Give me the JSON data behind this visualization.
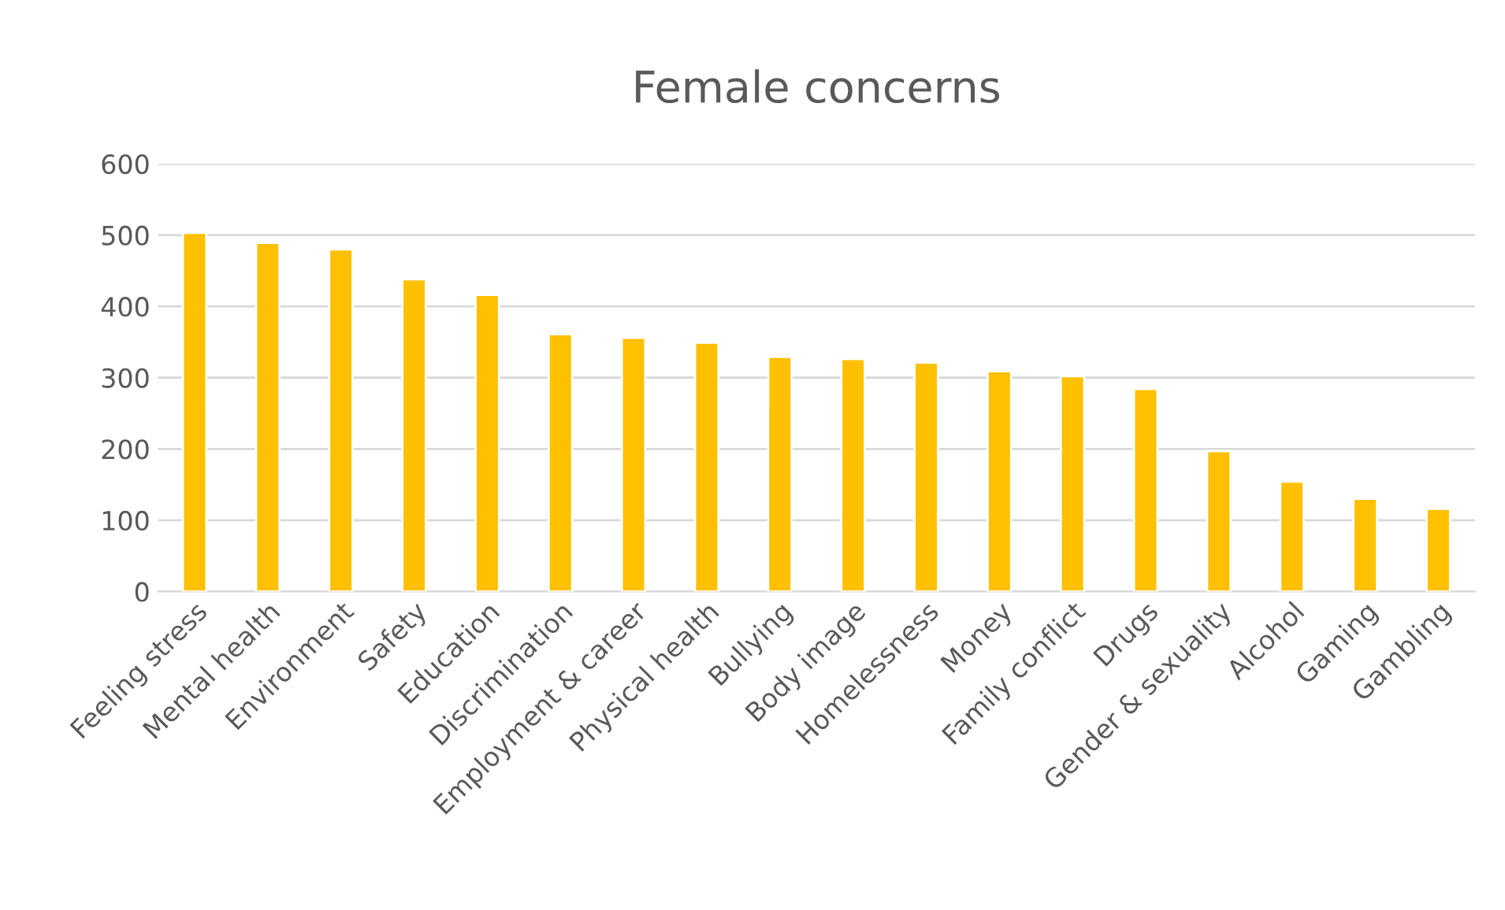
{
  "chart_data": {
    "type": "bar",
    "title": "Female concerns",
    "categories": [
      "Feeling stress",
      "Mental health",
      "Environment",
      "Safety",
      "Education",
      "Discrimination",
      "Employment & career",
      "Physical health",
      "Bullying",
      "Body image",
      "Homelessness",
      "Money",
      "Family conflict",
      "Drugs",
      "Gender & sexuality",
      "Alcohol",
      "Gaming",
      "Gambling"
    ],
    "values": [
      503,
      489,
      480,
      438,
      416,
      361,
      356,
      349,
      329,
      326,
      321,
      309,
      302,
      284,
      197,
      154,
      130,
      116
    ],
    "color": "#ffc000",
    "ylim": [
      0,
      600
    ],
    "yticks": [
      0,
      100,
      200,
      300,
      400,
      500,
      600
    ],
    "grid": "y",
    "legend": false
  }
}
